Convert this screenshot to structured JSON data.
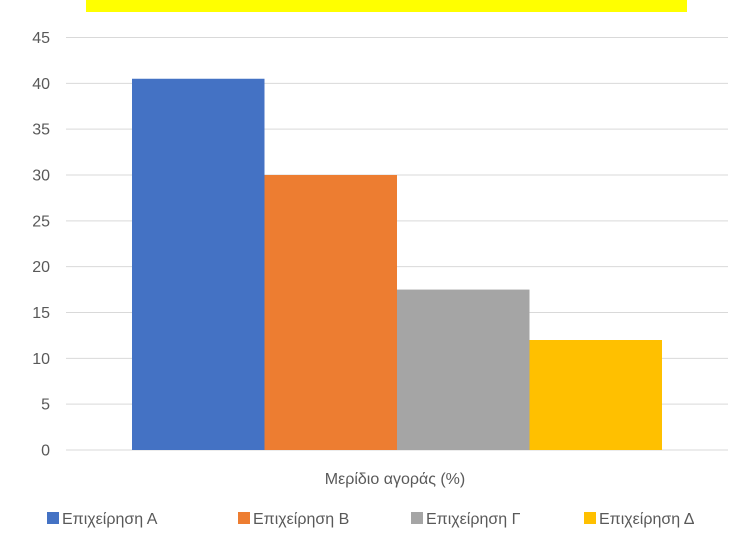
{
  "chart_data": {
    "type": "bar",
    "title": "",
    "xlabel": "Μερίδιο αγοράς (%)",
    "ylabel": "",
    "ylim": [
      0,
      45
    ],
    "yticks": [
      0,
      5,
      10,
      15,
      20,
      25,
      30,
      35,
      40,
      45
    ],
    "grid": true,
    "legend_position": "bottom",
    "categories": [
      "Μερίδιο αγοράς (%)"
    ],
    "series": [
      {
        "name": "Επιχείρηση Α",
        "values": [
          40.5
        ],
        "color": "#4472c4"
      },
      {
        "name": "Επιχείρηση Β",
        "values": [
          30
        ],
        "color": "#ed7d31"
      },
      {
        "name": "Επιχείρηση Γ",
        "values": [
          17.5
        ],
        "color": "#a5a5a5"
      },
      {
        "name": "Επιχείρηση Δ",
        "values": [
          12
        ],
        "color": "#ffc000"
      }
    ]
  },
  "colors": {
    "title_highlight": "#ffff00",
    "gridline": "#d9d9d9",
    "text": "#595959"
  }
}
